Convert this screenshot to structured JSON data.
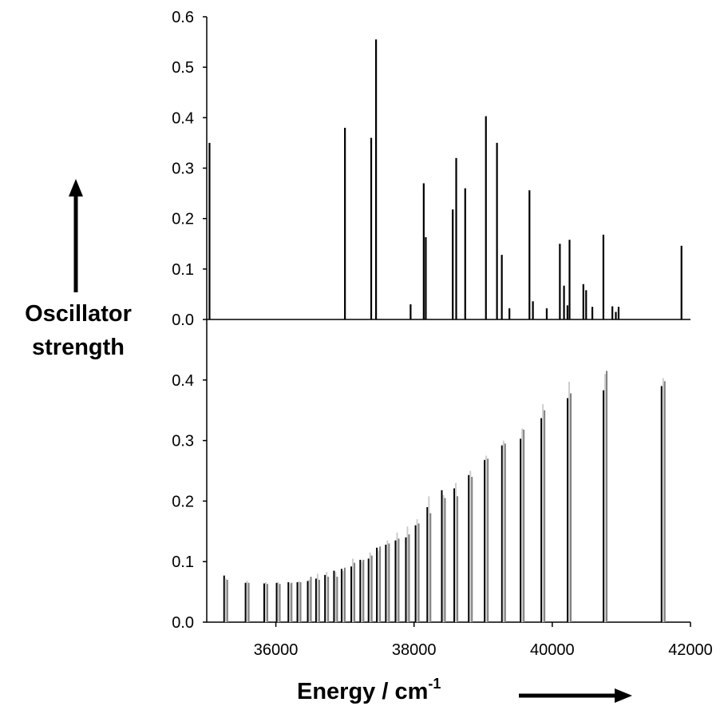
{
  "chart_data": [
    {
      "type": "bar",
      "panel": "top",
      "xlim": [
        35000,
        42000
      ],
      "ylim": [
        0,
        0.6
      ],
      "yticks": [
        "0.0",
        "0.1",
        "0.2",
        "0.3",
        "0.4",
        "0.5",
        "0.6"
      ],
      "grid": false,
      "series": [
        {
          "color": "#000000",
          "points": [
            [
              35040,
              0.35
            ],
            [
              37000,
              0.38
            ],
            [
              37380,
              0.36
            ],
            [
              37450,
              0.555
            ],
            [
              37950,
              0.03
            ],
            [
              38140,
              0.27
            ],
            [
              38170,
              0.163
            ],
            [
              38560,
              0.218
            ],
            [
              38610,
              0.32
            ],
            [
              38740,
              0.26
            ],
            [
              39040,
              0.403
            ],
            [
              39200,
              0.35
            ],
            [
              39270,
              0.128
            ],
            [
              39380,
              0.022
            ],
            [
              39670,
              0.256
            ],
            [
              39720,
              0.036
            ],
            [
              39920,
              0.022
            ],
            [
              40110,
              0.15
            ],
            [
              40170,
              0.067
            ],
            [
              40220,
              0.028
            ],
            [
              40250,
              0.158
            ],
            [
              40450,
              0.07
            ],
            [
              40490,
              0.058
            ],
            [
              40580,
              0.025
            ],
            [
              40740,
              0.168
            ],
            [
              40870,
              0.026
            ],
            [
              40920,
              0.015
            ],
            [
              40960,
              0.025
            ],
            [
              41870,
              0.146
            ]
          ]
        }
      ]
    },
    {
      "type": "bar",
      "panel": "bottom",
      "xlim": [
        35000,
        42000
      ],
      "ylim": [
        0,
        0.5
      ],
      "xticks": [
        "36000",
        "38000",
        "40000",
        "42000"
      ],
      "yticks": [
        "0.0",
        "0.1",
        "0.2",
        "0.3",
        "0.4"
      ],
      "grid": false,
      "groups_x": [
        35270,
        35580,
        35850,
        36030,
        36200,
        36330,
        36480,
        36600,
        36730,
        36860,
        36970,
        37110,
        37240,
        37360,
        37480,
        37610,
        37750,
        37900,
        38040,
        38210,
        38420,
        38600,
        38810,
        39040,
        39290,
        39560,
        39860,
        40240,
        40760,
        41600
      ],
      "series": [
        {
          "color": "#000000",
          "values": [
            0.077,
            0.065,
            0.064,
            0.065,
            0.066,
            0.066,
            0.068,
            0.072,
            0.078,
            0.085,
            0.088,
            0.092,
            0.103,
            0.105,
            0.123,
            0.128,
            0.135,
            0.14,
            0.16,
            0.19,
            0.218,
            0.221,
            0.243,
            0.268,
            0.292,
            0.303,
            0.337,
            0.37,
            0.383,
            0.39
          ]
        },
        {
          "color": "#cccccc",
          "values": [
            0.072,
            0.068,
            0.066,
            0.066,
            0.064,
            0.068,
            0.07,
            0.08,
            0.083,
            0.083,
            0.085,
            0.105,
            0.1,
            0.115,
            0.118,
            0.135,
            0.148,
            0.158,
            0.17,
            0.208,
            0.21,
            0.23,
            0.25,
            0.275,
            0.3,
            0.32,
            0.36,
            0.397,
            0.41,
            0.403
          ]
        },
        {
          "color": "#808080",
          "values": [
            0.07,
            0.065,
            0.063,
            0.063,
            0.065,
            0.066,
            0.075,
            0.07,
            0.075,
            0.075,
            0.09,
            0.098,
            0.103,
            0.11,
            0.125,
            0.13,
            0.138,
            0.145,
            0.163,
            0.18,
            0.205,
            0.208,
            0.24,
            0.27,
            0.295,
            0.318,
            0.35,
            0.378,
            0.415,
            0.398
          ]
        }
      ]
    }
  ],
  "labels": {
    "ylabel_line1": "Oscillator",
    "ylabel_line2": "strength",
    "xlabel_main": "Energy / cm",
    "xlabel_sup": "-1"
  }
}
